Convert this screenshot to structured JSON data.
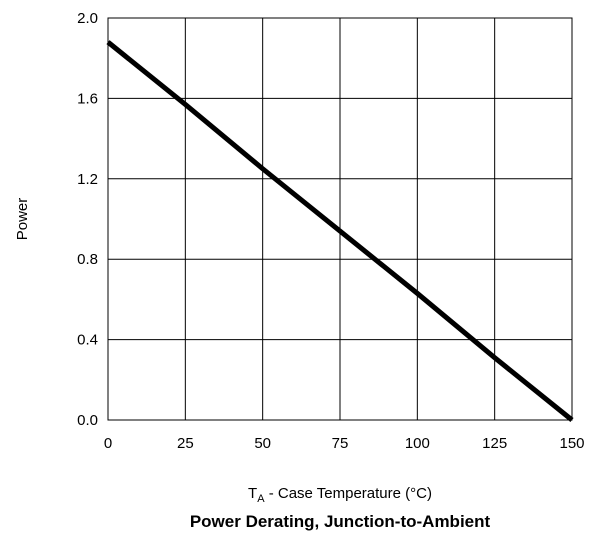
{
  "chart_data": {
    "type": "line",
    "title": "Power Derating, Junction-to-Ambient",
    "xlabel": {
      "main": "T",
      "sub": "A",
      "rest": " - Case Temperature (°C)"
    },
    "ylabel": "Power",
    "xlim": [
      0,
      150
    ],
    "ylim": [
      0,
      2.0
    ],
    "x_ticks": [
      0,
      25,
      50,
      75,
      100,
      125,
      150
    ],
    "x_tick_labels": [
      "0",
      "25",
      "50",
      "75",
      "100",
      "125",
      "150"
    ],
    "y_ticks": [
      0,
      0.4,
      0.8,
      1.2,
      1.6,
      2.0
    ],
    "y_tick_labels": [
      "0.0",
      "0.4",
      "0.8",
      "1.2",
      "1.6",
      "2.0"
    ],
    "grid": true,
    "series": [
      {
        "line_color": "#000000",
        "x": [
          0,
          25,
          50,
          75,
          100,
          125,
          150
        ],
        "y": [
          1.88,
          1.57,
          1.25,
          0.94,
          0.63,
          0.31,
          0.0
        ]
      }
    ]
  }
}
